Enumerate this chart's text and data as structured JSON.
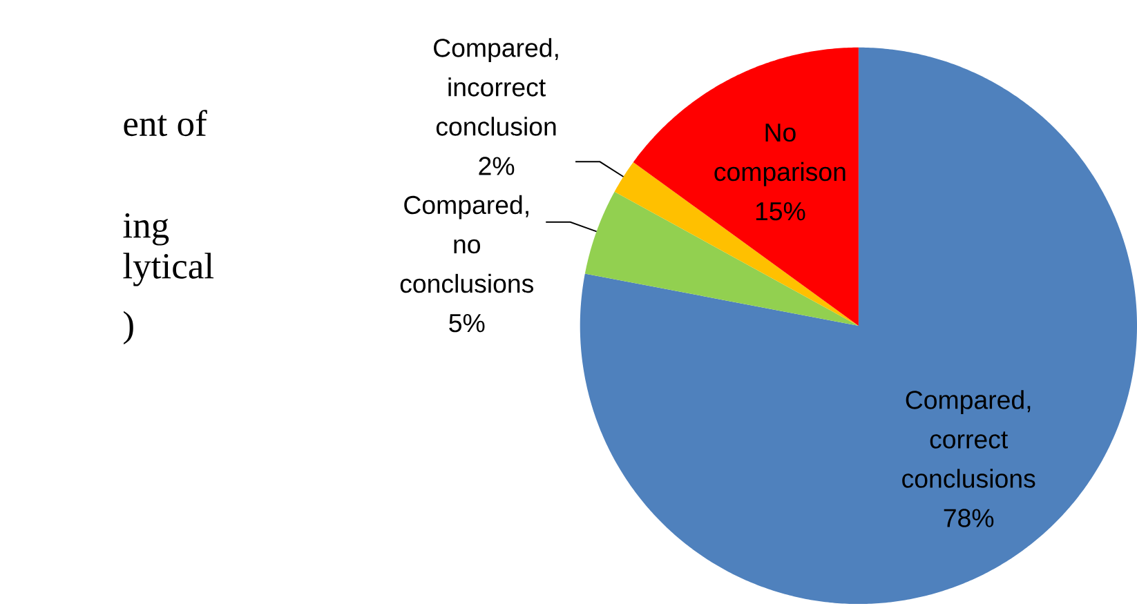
{
  "chart_data": {
    "type": "pie",
    "categories": [
      "Compared, correct conclusions",
      "Compared, no conclusions",
      "Compared, incorrect conclusion",
      "No comparison"
    ],
    "values": [
      78,
      5,
      2,
      15
    ],
    "colors": [
      "#4f81bd",
      "#92d050",
      "#ffc000",
      "#ff0000"
    ],
    "value_labels": [
      "78%",
      "5%",
      "2%",
      "15%"
    ],
    "annotations": [
      "ent of",
      "ing",
      "lytical",
      ")"
    ]
  }
}
